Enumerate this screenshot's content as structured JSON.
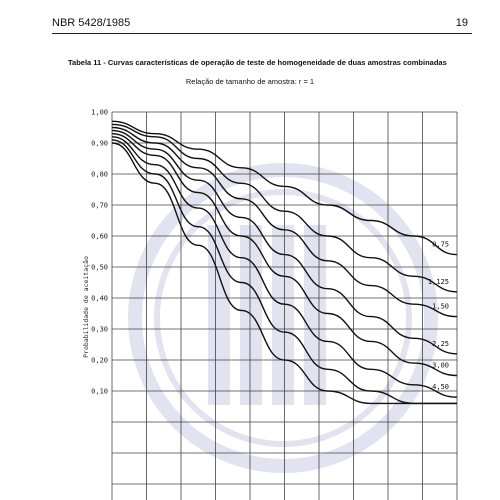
{
  "document": {
    "standard": "NBR 5428/1985",
    "page_number": "19",
    "table_caption": "Tabela 11 - Curvas características de operação de teste de homogeneidade de duas amostras combinadas",
    "subtitle": "Relação de tamanho de amostra: r = 1"
  },
  "chart_data": {
    "type": "line",
    "ylabel": "Probabilidade de aceitação",
    "xlabel": "",
    "ylim": [
      0.06,
      1.0
    ],
    "yticks": [
      "1,00",
      "0,90",
      "0,80",
      "0,70",
      "0,60",
      "0,50",
      "0,40",
      "0,30",
      "0,20",
      "0,10"
    ],
    "x_gridlines": 10,
    "grid": true,
    "x": [
      0,
      1,
      2,
      3,
      4,
      5,
      6,
      7,
      8
    ],
    "series": [
      {
        "name": "0,75",
        "values": [
          0.97,
          0.93,
          0.88,
          0.82,
          0.76,
          0.7,
          0.65,
          0.6,
          0.54
        ]
      },
      {
        "name": "1,125",
        "values": [
          0.96,
          0.92,
          0.85,
          0.77,
          0.68,
          0.6,
          0.53,
          0.47,
          0.42
        ]
      },
      {
        "name": "1,50",
        "values": [
          0.95,
          0.9,
          0.82,
          0.72,
          0.62,
          0.52,
          0.44,
          0.38,
          0.34
        ]
      },
      {
        "name": "2,25",
        "values": [
          0.94,
          0.88,
          0.78,
          0.66,
          0.54,
          0.43,
          0.34,
          0.27,
          0.22
        ]
      },
      {
        "name": "3,00",
        "values": [
          0.93,
          0.86,
          0.74,
          0.6,
          0.47,
          0.35,
          0.26,
          0.19,
          0.15
        ]
      },
      {
        "name": "4,50",
        "values": [
          0.92,
          0.83,
          0.69,
          0.53,
          0.38,
          0.26,
          0.17,
          0.12,
          0.08
        ]
      },
      {
        "name": "",
        "values": [
          0.91,
          0.8,
          0.63,
          0.45,
          0.29,
          0.17,
          0.1,
          0.06,
          0.06
        ]
      },
      {
        "name": "",
        "values": [
          0.9,
          0.77,
          0.57,
          0.36,
          0.2,
          0.1,
          0.06,
          0.06,
          0.06
        ]
      }
    ],
    "colors": {
      "line": "#111111",
      "grid": "#444444",
      "watermark": "#c9cde6"
    }
  }
}
